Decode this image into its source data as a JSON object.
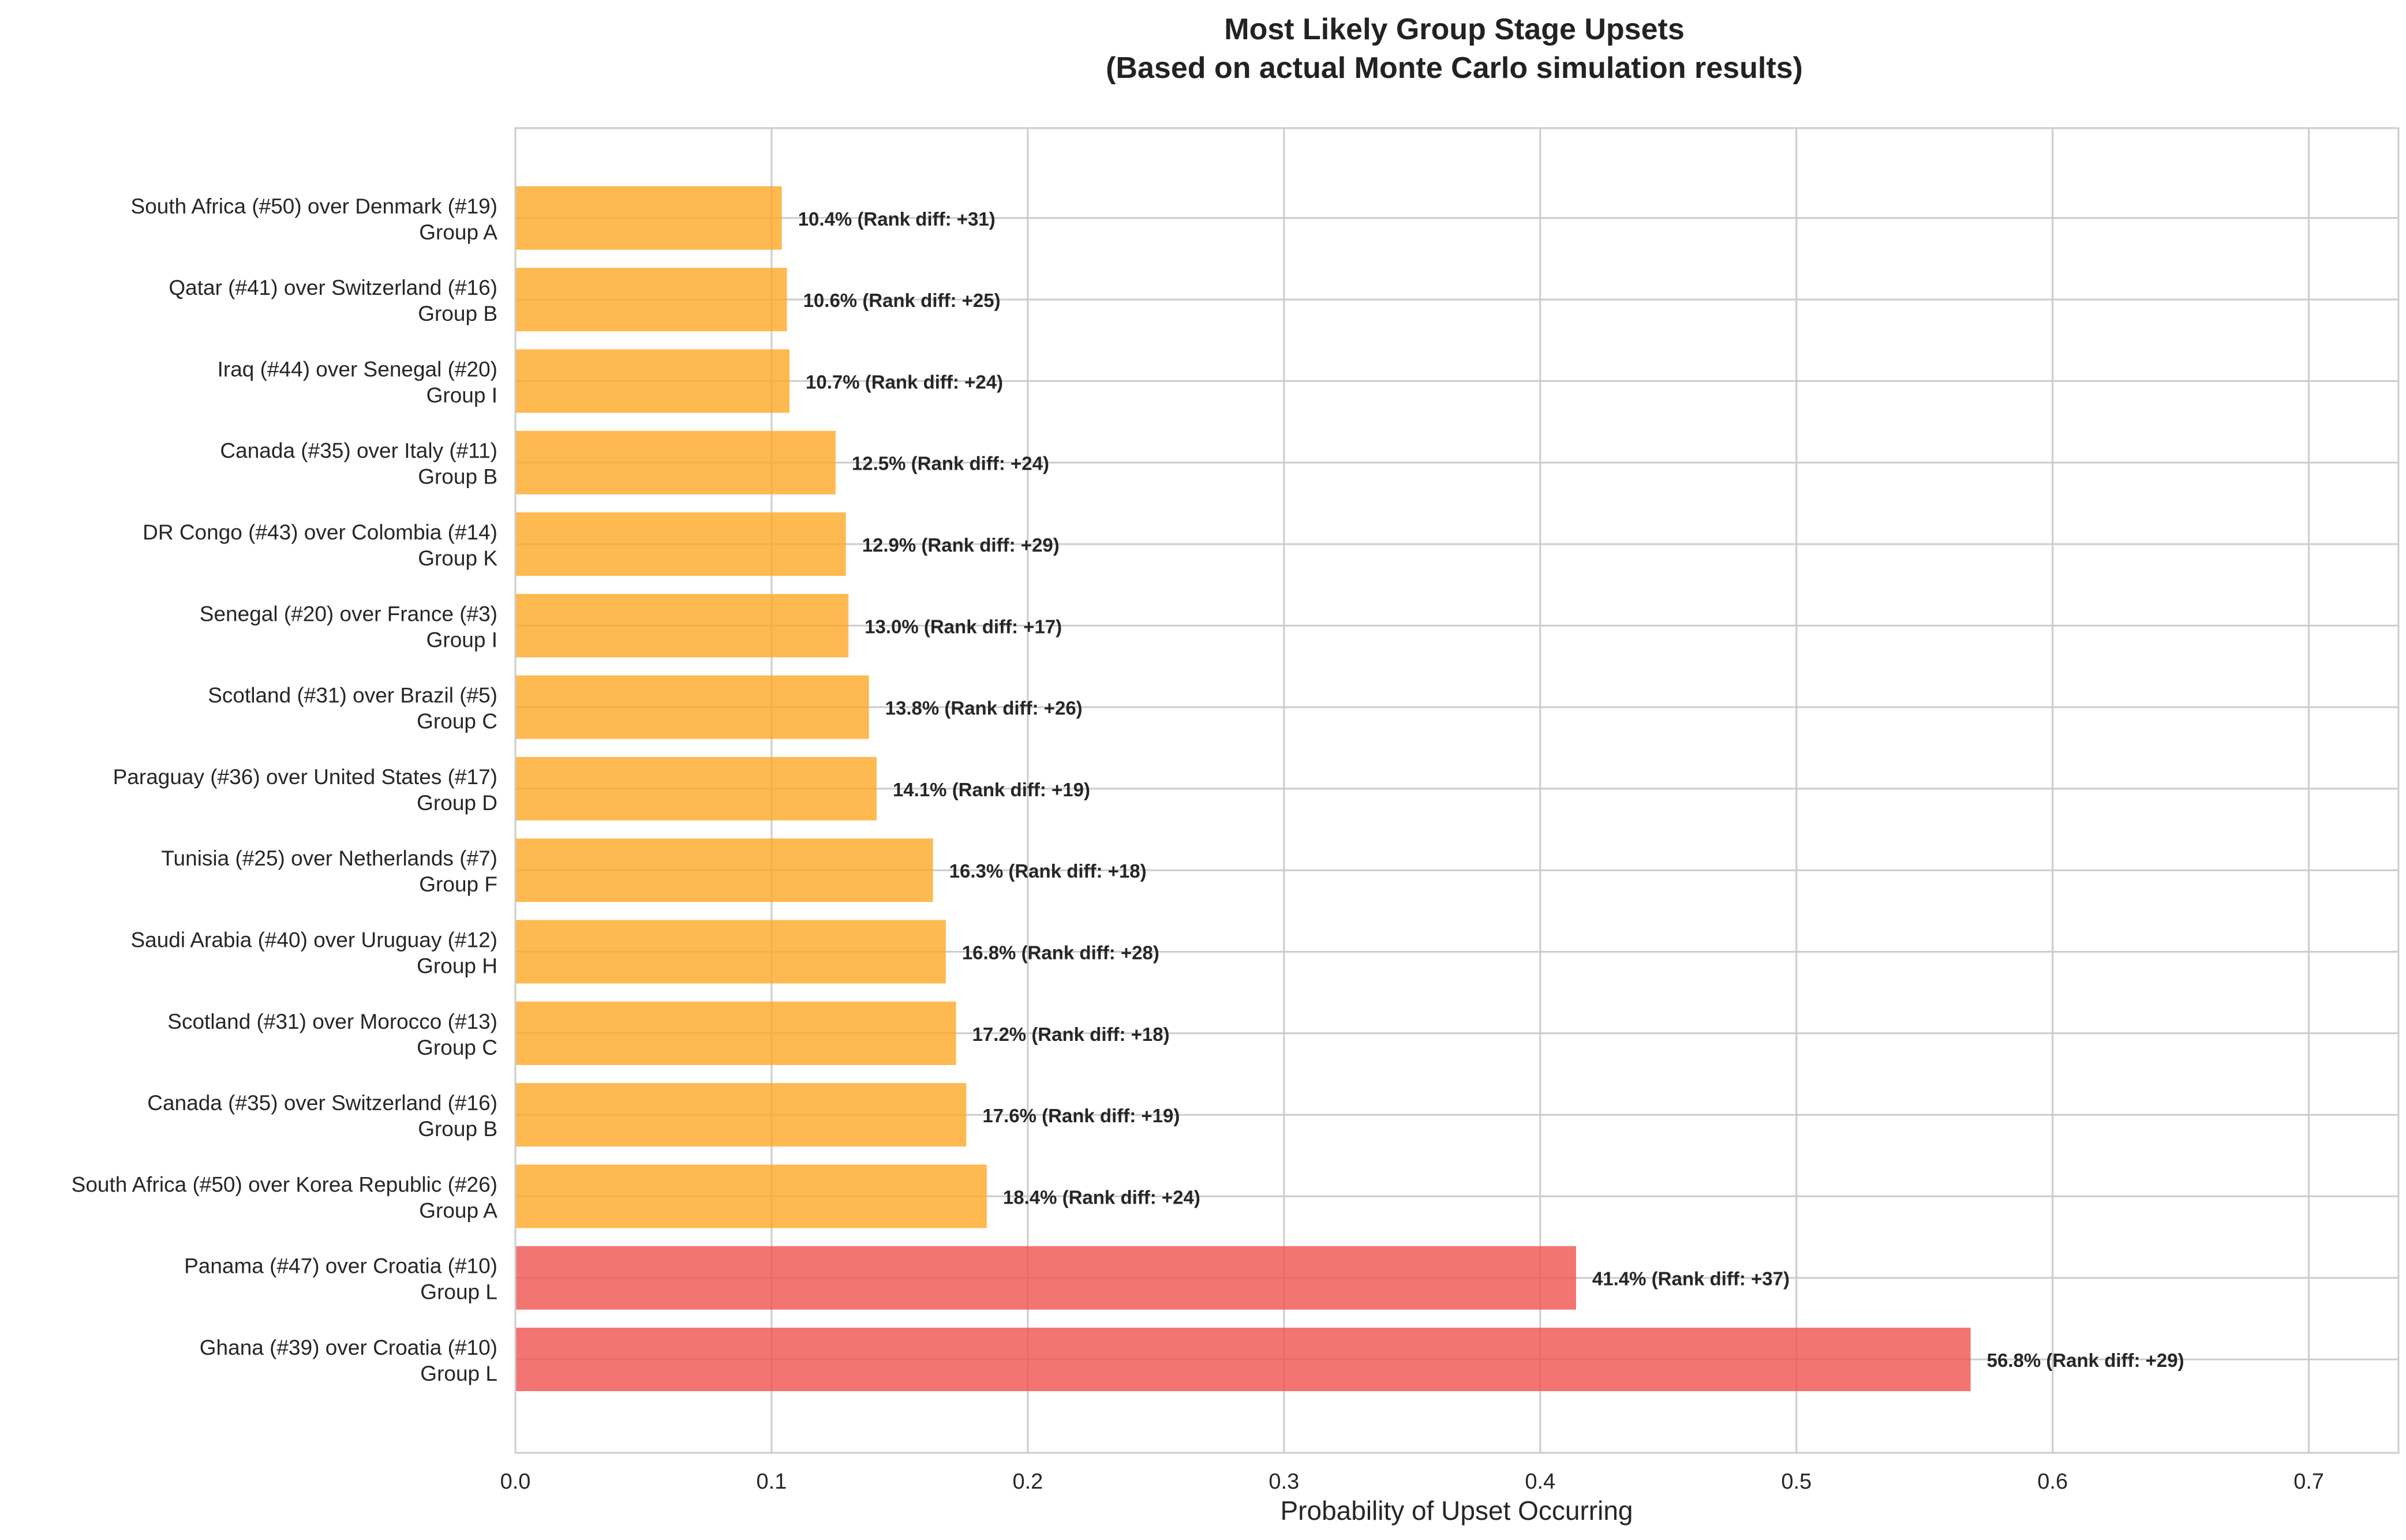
{
  "chart_data": {
    "type": "bar",
    "orientation": "horizontal",
    "title": "Most Likely Group Stage Upsets",
    "subtitle": "(Based on actual Monte Carlo simulation results)",
    "xlabel": "Probability of Upset Occurring",
    "ylabel": "",
    "xlim": [
      0,
      0.735
    ],
    "xticks": [
      0.0,
      0.1,
      0.2,
      0.3,
      0.4,
      0.5,
      0.6,
      0.7
    ],
    "xtick_labels": [
      "0.0",
      "0.1",
      "0.2",
      "0.3",
      "0.4",
      "0.5",
      "0.6",
      "0.7"
    ],
    "grid": true,
    "bar_order": "bottom-to-top",
    "colors": {
      "moderate": "#FFA726",
      "high": "#EF5350",
      "grid": "#cccccc",
      "spine": "#cccccc",
      "text": "#262626"
    },
    "bars": [
      {
        "matchup": "Ghana (#39) over Croatia (#10)",
        "group": "Group L",
        "value": 0.568,
        "label": "56.8% (Rank diff: +29)",
        "color": "#EF5350"
      },
      {
        "matchup": "Panama (#47) over Croatia (#10)",
        "group": "Group L",
        "value": 0.414,
        "label": "41.4% (Rank diff: +37)",
        "color": "#EF5350"
      },
      {
        "matchup": "South Africa (#50) over Korea Republic (#26)",
        "group": "Group A",
        "value": 0.184,
        "label": "18.4% (Rank diff: +24)",
        "color": "#FFA726"
      },
      {
        "matchup": "Canada (#35) over Switzerland (#16)",
        "group": "Group B",
        "value": 0.176,
        "label": "17.6% (Rank diff: +19)",
        "color": "#FFA726"
      },
      {
        "matchup": "Scotland (#31) over Morocco (#13)",
        "group": "Group C",
        "value": 0.172,
        "label": "17.2% (Rank diff: +18)",
        "color": "#FFA726"
      },
      {
        "matchup": "Saudi Arabia (#40) over Uruguay (#12)",
        "group": "Group H",
        "value": 0.168,
        "label": "16.8% (Rank diff: +28)",
        "color": "#FFA726"
      },
      {
        "matchup": "Tunisia (#25) over Netherlands (#7)",
        "group": "Group F",
        "value": 0.163,
        "label": "16.3% (Rank diff: +18)",
        "color": "#FFA726"
      },
      {
        "matchup": "Paraguay (#36) over United States (#17)",
        "group": "Group D",
        "value": 0.141,
        "label": "14.1% (Rank diff: +19)",
        "color": "#FFA726"
      },
      {
        "matchup": "Scotland (#31) over Brazil (#5)",
        "group": "Group C",
        "value": 0.138,
        "label": "13.8% (Rank diff: +26)",
        "color": "#FFA726"
      },
      {
        "matchup": "Senegal (#20) over France (#3)",
        "group": "Group I",
        "value": 0.13,
        "label": "13.0% (Rank diff: +17)",
        "color": "#FFA726"
      },
      {
        "matchup": "DR Congo (#43) over Colombia (#14)",
        "group": "Group K",
        "value": 0.129,
        "label": "12.9% (Rank diff: +29)",
        "color": "#FFA726"
      },
      {
        "matchup": "Canada (#35) over Italy (#11)",
        "group": "Group B",
        "value": 0.125,
        "label": "12.5% (Rank diff: +24)",
        "color": "#FFA726"
      },
      {
        "matchup": "Iraq (#44) over Senegal (#20)",
        "group": "Group I",
        "value": 0.107,
        "label": "10.7% (Rank diff: +24)",
        "color": "#FFA726"
      },
      {
        "matchup": "Qatar (#41) over Switzerland (#16)",
        "group": "Group B",
        "value": 0.106,
        "label": "10.6% (Rank diff: +25)",
        "color": "#FFA726"
      },
      {
        "matchup": "South Africa (#50) over Denmark (#19)",
        "group": "Group A",
        "value": 0.104,
        "label": "10.4% (Rank diff: +31)",
        "color": "#FFA726"
      }
    ]
  }
}
